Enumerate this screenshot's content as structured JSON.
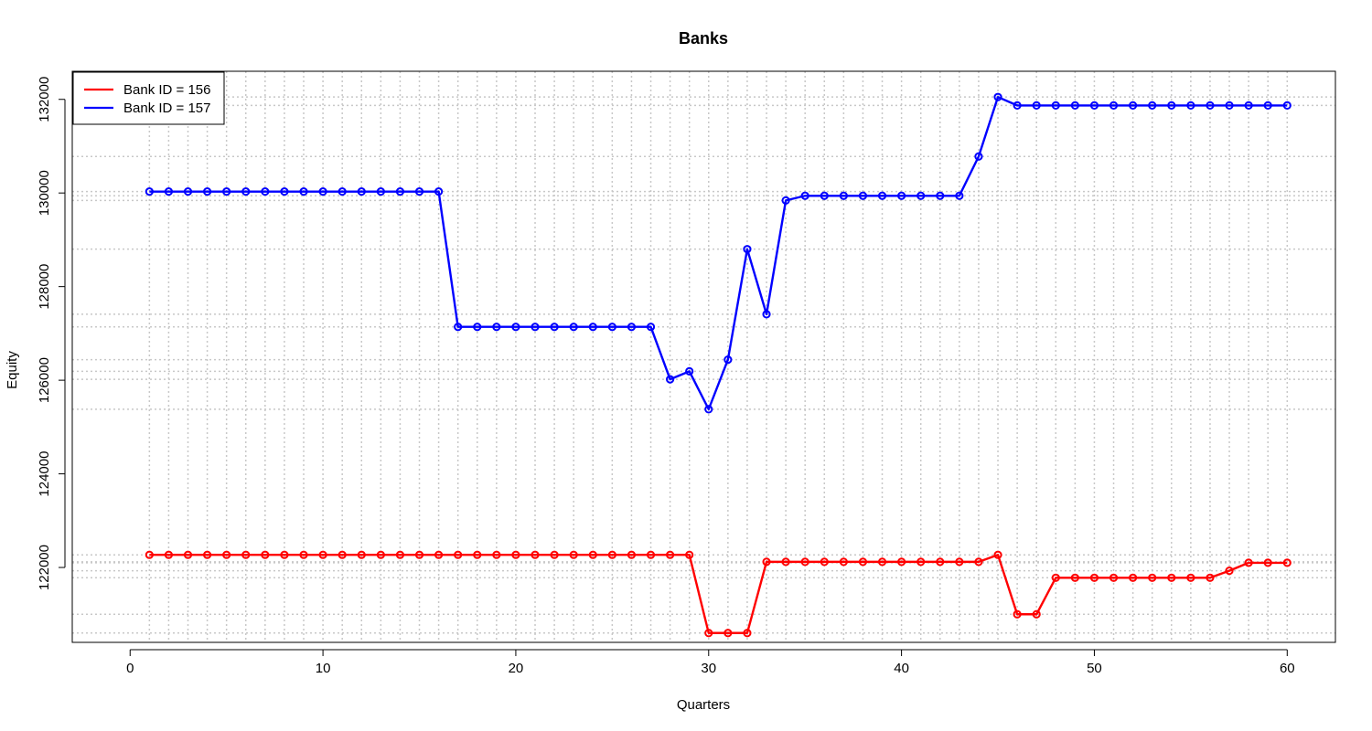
{
  "chart_data": {
    "type": "line",
    "title": "Banks",
    "xlabel": "Quarters",
    "ylabel": "Equity",
    "xlim": [
      -3,
      62.5
    ],
    "ylim": [
      120400,
      132600
    ],
    "xticks": [
      0,
      10,
      20,
      30,
      40,
      50,
      60
    ],
    "xtick_labels": [
      "0",
      "10",
      "20",
      "30",
      "40",
      "50",
      "60"
    ],
    "yticks": [
      122000,
      124000,
      126000,
      128000,
      130000,
      132000
    ],
    "ytick_labels": [
      "122000",
      "124000",
      "126000",
      "128000",
      "130000",
      "132000"
    ],
    "grid": true,
    "legend_position": "top-left",
    "x": [
      1,
      2,
      3,
      4,
      5,
      6,
      7,
      8,
      9,
      10,
      11,
      12,
      13,
      14,
      15,
      16,
      17,
      18,
      19,
      20,
      21,
      22,
      23,
      24,
      25,
      26,
      27,
      28,
      29,
      30,
      31,
      32,
      33,
      34,
      35,
      36,
      37,
      38,
      39,
      40,
      41,
      42,
      43,
      44,
      45,
      46,
      47,
      48,
      49,
      50,
      51,
      52,
      53,
      54,
      55,
      56,
      57,
      58,
      59,
      60
    ],
    "series": [
      {
        "name": "Bank ID = 156",
        "color": "#ff0000",
        "values": [
          122270,
          122270,
          122270,
          122270,
          122270,
          122270,
          122270,
          122270,
          122270,
          122270,
          122270,
          122270,
          122270,
          122270,
          122270,
          122270,
          122270,
          122270,
          122270,
          122270,
          122270,
          122270,
          122270,
          122270,
          122270,
          122270,
          122270,
          122270,
          122270,
          120600,
          120600,
          120600,
          122120,
          122120,
          122120,
          122120,
          122120,
          122120,
          122120,
          122120,
          122120,
          122120,
          122120,
          122120,
          122270,
          121000,
          121000,
          121780,
          121780,
          121780,
          121780,
          121780,
          121780,
          121780,
          121780,
          121780,
          121930,
          122100,
          122100,
          122100
        ]
      },
      {
        "name": "Bank ID = 157",
        "color": "#0000ff",
        "values": [
          130030,
          130030,
          130030,
          130030,
          130030,
          130030,
          130030,
          130030,
          130030,
          130030,
          130030,
          130030,
          130030,
          130030,
          130030,
          130030,
          127140,
          127140,
          127140,
          127140,
          127140,
          127140,
          127140,
          127140,
          127140,
          127140,
          127140,
          126020,
          126190,
          125380,
          126440,
          128800,
          127410,
          129840,
          129940,
          129940,
          129940,
          129940,
          129940,
          129940,
          129940,
          129940,
          129940,
          130780,
          132050,
          131870,
          131870,
          131870,
          131870,
          131870,
          131870,
          131870,
          131870,
          131870,
          131870,
          131870,
          131870,
          131870,
          131870,
          131870
        ]
      }
    ]
  }
}
